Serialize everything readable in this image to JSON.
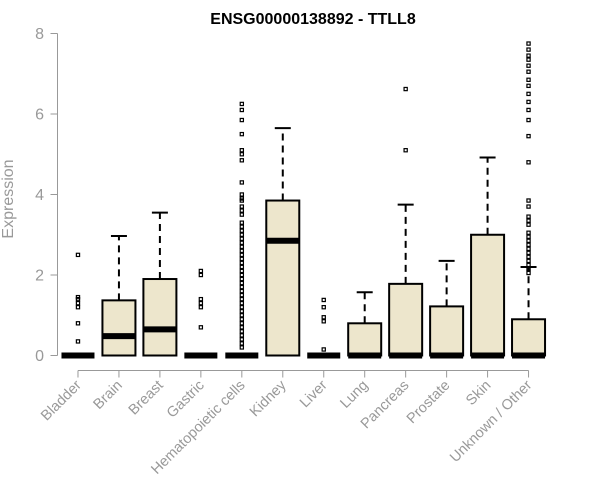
{
  "chart_data": {
    "type": "box",
    "title": "ENSG00000138892 - TTLL8",
    "ylabel": "Expression",
    "xlabel": "",
    "ylim": [
      0,
      8
    ],
    "yticks": [
      0,
      2,
      4,
      6,
      8
    ],
    "grid": false,
    "legend": "none",
    "colors": {
      "box_fill": "#ede6cc",
      "stroke": "#000000",
      "axis": "#999999",
      "title": "#000000"
    },
    "categories": [
      "Bladder",
      "Brain",
      "Breast",
      "Gastric",
      "Hematopoietic cells",
      "Kidney",
      "Liver",
      "Lung",
      "Pancreas",
      "Prostate",
      "Skin",
      "Unknown / Other"
    ],
    "boxes": [
      {
        "category": "Bladder",
        "q1": 0,
        "median": 0,
        "q3": 0,
        "whisker_low": 0,
        "whisker_high": 0,
        "outliers": [
          2.5,
          1.45,
          1.4,
          1.3,
          1.2,
          0.8,
          0.35
        ]
      },
      {
        "category": "Brain",
        "q1": 0,
        "median": 0.48,
        "q3": 1.37,
        "whisker_low": 0,
        "whisker_high": 2.97,
        "outliers": []
      },
      {
        "category": "Breast",
        "q1": 0,
        "median": 0.65,
        "q3": 1.9,
        "whisker_low": 0,
        "whisker_high": 3.55,
        "outliers": []
      },
      {
        "category": "Gastric",
        "q1": 0,
        "median": 0,
        "q3": 0,
        "whisker_low": 0,
        "whisker_high": 0,
        "outliers": [
          2.1,
          2.0,
          1.4,
          1.3,
          1.2,
          0.7
        ]
      },
      {
        "category": "Hematopoietic cells",
        "q1": 0,
        "median": 0,
        "q3": 0,
        "whisker_low": 0,
        "whisker_high": 0,
        "outliers": [
          6.25,
          6.1,
          5.85,
          5.5,
          5.1,
          5.0,
          4.85,
          4.3,
          4.0,
          3.9,
          3.85,
          3.7,
          3.6,
          3.5,
          3.3,
          3.2,
          3.1,
          3.0,
          2.9,
          2.8,
          2.7,
          2.6,
          2.5,
          2.4,
          2.3,
          2.2,
          2.1,
          2.0,
          1.9,
          1.8,
          1.7,
          1.6,
          1.5,
          1.4,
          1.3,
          1.2,
          1.1,
          1.0,
          0.9,
          0.8,
          0.7,
          0.6,
          0.5,
          0.4,
          0.3,
          0.2
        ]
      },
      {
        "category": "Kidney",
        "q1": 0,
        "median": 2.85,
        "q3": 3.85,
        "whisker_low": 0,
        "whisker_high": 5.65,
        "outliers": []
      },
      {
        "category": "Liver",
        "q1": 0,
        "median": 0,
        "q3": 0,
        "whisker_low": 0,
        "whisker_high": 0,
        "outliers": [
          1.38,
          1.2,
          0.95,
          0.85,
          0.15
        ]
      },
      {
        "category": "Lung",
        "q1": 0,
        "median": 0,
        "q3": 0.8,
        "whisker_low": 0,
        "whisker_high": 1.57,
        "outliers": []
      },
      {
        "category": "Pancreas",
        "q1": 0,
        "median": 0,
        "q3": 1.78,
        "whisker_low": 0,
        "whisker_high": 3.75,
        "outliers": [
          6.62,
          5.1
        ]
      },
      {
        "category": "Prostate",
        "q1": 0,
        "median": 0,
        "q3": 1.22,
        "whisker_low": 0,
        "whisker_high": 2.35,
        "outliers": []
      },
      {
        "category": "Skin",
        "q1": 0,
        "median": 0,
        "q3": 3.0,
        "whisker_low": 0,
        "whisker_high": 4.92,
        "outliers": []
      },
      {
        "category": "Unknown / Other",
        "q1": 0,
        "median": 0,
        "q3": 0.9,
        "whisker_low": 0,
        "whisker_high": 2.2,
        "outliers": [
          7.75,
          7.6,
          7.45,
          7.35,
          7.2,
          7.05,
          6.85,
          6.7,
          6.5,
          6.3,
          6.1,
          5.85,
          5.45,
          4.8,
          3.85,
          3.7,
          3.45,
          3.35,
          3.25,
          3.05,
          2.95,
          2.85,
          2.75,
          2.65,
          2.55,
          2.45,
          2.35,
          2.25,
          2.15,
          2.05
        ]
      }
    ]
  }
}
